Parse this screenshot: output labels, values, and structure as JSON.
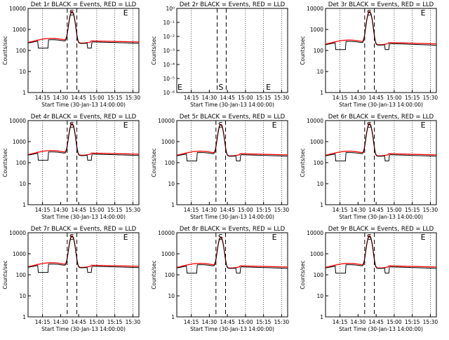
{
  "chart_data": [
    {
      "type": "line",
      "title": "Det 1r BLACK = Events, RED = LLD",
      "ylabel": "Counts/sec",
      "xlabel": "Start Time (30-Jan-13 14:00:00)",
      "markers": [
        "S",
        "E"
      ],
      "has_data": true,
      "x_ticks": [
        "14:15",
        "14:30",
        "14:45",
        "15:00",
        "15:15",
        "15:30"
      ],
      "y_ticks": [
        "1",
        "10",
        "100",
        "1000",
        "10000"
      ],
      "ylim": [
        1,
        10000
      ],
      "log_scale": true,
      "flat_y_range": [
        1,
        10000
      ],
      "red_baseline": 300,
      "red_peak": 7000,
      "black_dip": 130,
      "series": [
        {
          "color": "#000000"
        },
        {
          "color": "#ff0000"
        }
      ]
    },
    {
      "type": "line",
      "title": "Det 2r BLACK = Events, RED = LLD",
      "ylabel": "Counts/sec",
      "xlabel": "Start Time (30-Jan-13 14:00:00)",
      "markers": [
        "E",
        "S",
        "E"
      ],
      "has_data": false,
      "x_ticks": [
        "14:15",
        "14:30",
        "14:45",
        "15:00",
        "15:15",
        "15:30"
      ],
      "y_ticks": [
        "10⁻⁶",
        "10⁻⁵",
        "10⁻⁴",
        "10⁻³",
        "10⁻²",
        "10⁻¹",
        "10⁰"
      ],
      "ylim": [
        1e-06,
        1
      ],
      "log_scale": true,
      "series": [
        {
          "color": "#000000"
        },
        {
          "color": "#ff0000"
        }
      ]
    },
    {
      "type": "line",
      "title": "Det 3r BLACK = Events, RED = LLD",
      "ylabel": "Counts/sec",
      "xlabel": "Start Time (30-Jan-13 14:00:00)",
      "markers": [
        "S",
        "E"
      ],
      "has_data": true,
      "x_ticks": [
        "14:15",
        "14:30",
        "14:45",
        "15:00",
        "15:15",
        "15:30"
      ],
      "y_ticks": [
        "1",
        "10",
        "100",
        "1000",
        "10000"
      ],
      "ylim": [
        1,
        10000
      ],
      "log_scale": true,
      "red_baseline": 250,
      "red_peak": 7000,
      "black_dip": 110,
      "series": [
        {
          "color": "#000000"
        },
        {
          "color": "#ff0000"
        }
      ]
    },
    {
      "type": "line",
      "title": "Det 4r BLACK = Events, RED = LLD",
      "ylabel": "Counts/sec",
      "xlabel": "Start Time (30-Jan-13 14:00:00)",
      "markers": [
        "S",
        "E"
      ],
      "has_data": true,
      "x_ticks": [
        "14:15",
        "14:30",
        "14:45",
        "15:00",
        "15:15",
        "15:30"
      ],
      "y_ticks": [
        "1",
        "10",
        "100",
        "1000",
        "10000"
      ],
      "ylim": [
        1,
        10000
      ],
      "log_scale": true,
      "red_baseline": 300,
      "red_peak": 7000,
      "black_dip": 130,
      "series": [
        {
          "color": "#000000"
        },
        {
          "color": "#ff0000"
        }
      ]
    },
    {
      "type": "line",
      "title": "Det 5r BLACK = Events, RED = LLD",
      "ylabel": "Counts/sec",
      "xlabel": "Start Time (30-Jan-13 14:00:00)",
      "markers": [
        "S",
        "E"
      ],
      "has_data": true,
      "x_ticks": [
        "14:15",
        "14:30",
        "14:45",
        "15:00",
        "15:15",
        "15:30"
      ],
      "y_ticks": [
        "1",
        "10",
        "100",
        "1000",
        "10000"
      ],
      "ylim": [
        1,
        10000
      ],
      "log_scale": true,
      "red_baseline": 280,
      "red_peak": 6500,
      "black_dip": 120,
      "series": [
        {
          "color": "#000000"
        },
        {
          "color": "#ff0000"
        }
      ]
    },
    {
      "type": "line",
      "title": "Det 6r BLACK = Events, RED = LLD",
      "ylabel": "Counts/sec",
      "xlabel": "Start Time (30-Jan-13 14:00:00)",
      "markers": [
        "S",
        "E"
      ],
      "has_data": true,
      "x_ticks": [
        "14:15",
        "14:30",
        "14:45",
        "15:00",
        "15:15",
        "15:30"
      ],
      "y_ticks": [
        "1",
        "10",
        "100",
        "1000",
        "10000"
      ],
      "ylim": [
        1,
        10000
      ],
      "log_scale": true,
      "red_baseline": 280,
      "red_peak": 7000,
      "black_dip": 120,
      "series": [
        {
          "color": "#000000"
        },
        {
          "color": "#ff0000"
        }
      ]
    },
    {
      "type": "line",
      "title": "Det 7r BLACK = Events, RED = LLD",
      "ylabel": "Counts/sec",
      "xlabel": "Start Time (30-Jan-13 14:00:00)",
      "markers": [
        "S",
        "E"
      ],
      "has_data": true,
      "x_ticks": [
        "14:15",
        "14:30",
        "14:45",
        "15:00",
        "15:15",
        "15:30"
      ],
      "y_ticks": [
        "1",
        "10",
        "100",
        "1000",
        "10000"
      ],
      "ylim": [
        1,
        10000
      ],
      "log_scale": true,
      "red_baseline": 300,
      "red_peak": 7000,
      "black_dip": 130,
      "series": [
        {
          "color": "#000000"
        },
        {
          "color": "#ff0000"
        }
      ]
    },
    {
      "type": "line",
      "title": "Det 8r BLACK = Events, RED = LLD",
      "ylabel": "Counts/sec",
      "xlabel": "Start Time (30-Jan-13 14:00:00)",
      "markers": [
        "S",
        "E"
      ],
      "has_data": true,
      "x_ticks": [
        "14:15",
        "14:30",
        "14:45",
        "15:00",
        "15:15",
        "15:30"
      ],
      "y_ticks": [
        "1",
        "10",
        "100",
        "1000",
        "10000"
      ],
      "ylim": [
        1,
        10000
      ],
      "log_scale": true,
      "red_baseline": 280,
      "red_peak": 6000,
      "black_dip": 120,
      "series": [
        {
          "color": "#000000"
        },
        {
          "color": "#ff0000"
        }
      ]
    },
    {
      "type": "line",
      "title": "Det 9r BLACK = Events, RED = LLD",
      "ylabel": "Counts/sec",
      "xlabel": "Start Time (30-Jan-13 14:00:00)",
      "markers": [
        "S",
        "E"
      ],
      "has_data": true,
      "x_ticks": [
        "14:15",
        "14:30",
        "14:45",
        "15:00",
        "15:15",
        "15:30"
      ],
      "y_ticks": [
        "1",
        "10",
        "100",
        "1000",
        "10000"
      ],
      "ylim": [
        1,
        10000
      ],
      "log_scale": true,
      "red_baseline": 280,
      "red_peak": 7000,
      "black_dip": 120,
      "series": [
        {
          "color": "#000000"
        },
        {
          "color": "#ff0000"
        }
      ]
    }
  ]
}
